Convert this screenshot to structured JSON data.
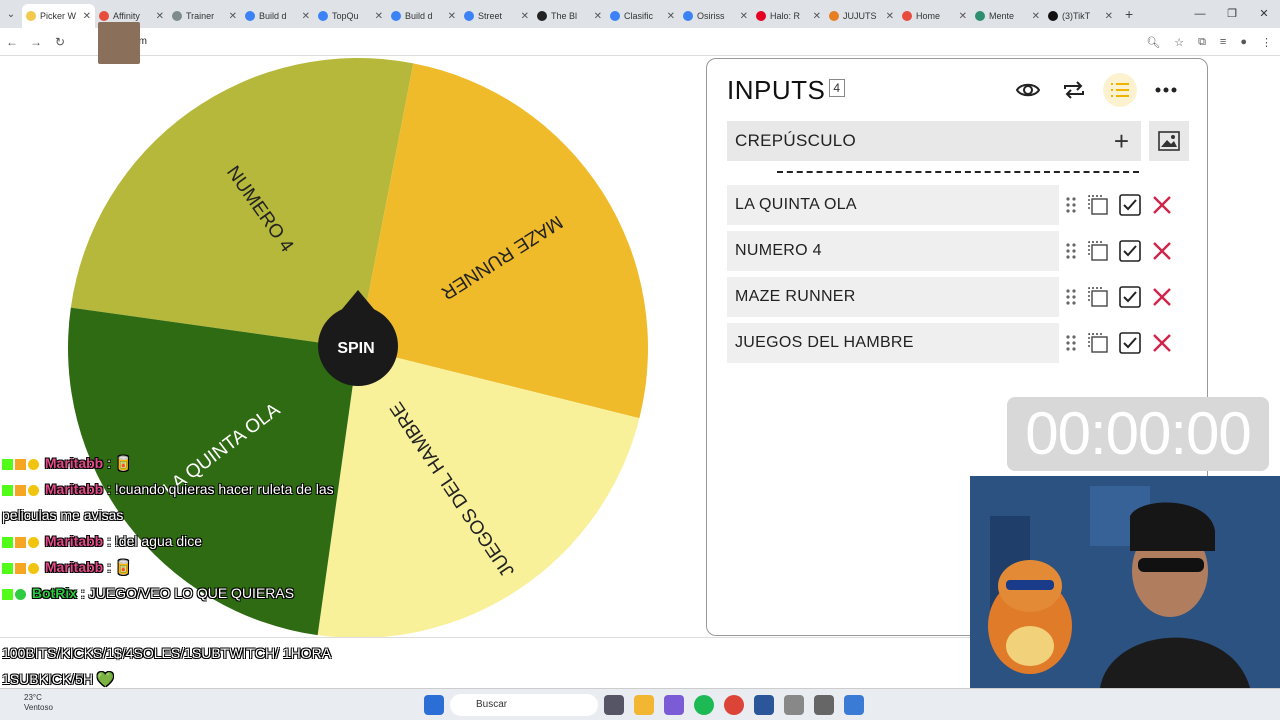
{
  "browser": {
    "tabs": [
      {
        "title": "Picker W",
        "color": "#f2c94c",
        "active": true
      },
      {
        "title": "Affinity",
        "color": "#e74c3c"
      },
      {
        "title": "Trainer",
        "color": "#7f8c8d"
      },
      {
        "title": "Build d",
        "color": "#3b82f6"
      },
      {
        "title": "TopQu",
        "color": "#3b82f6"
      },
      {
        "title": "Build d",
        "color": "#3b82f6"
      },
      {
        "title": "Street",
        "color": "#3b82f6"
      },
      {
        "title": "The Bl",
        "color": "#222222"
      },
      {
        "title": "Clasific",
        "color": "#3b82f6"
      },
      {
        "title": "Osiriss",
        "color": "#3b82f6"
      },
      {
        "title": "Halo: R",
        "color": "#e60023"
      },
      {
        "title": "JUJUTS",
        "color": "#e67e22"
      },
      {
        "title": "Home",
        "color": "#e74c3c"
      },
      {
        "title": "Mente",
        "color": "#2d8f6f"
      },
      {
        "title": "(3)TikT",
        "color": "#111111"
      }
    ],
    "new_tab": "+",
    "url": "eel.com"
  },
  "wheel": {
    "spin_label": "SPIN",
    "segments": [
      {
        "label": "NUMERO 4",
        "color": "#b5b83a"
      },
      {
        "label": "MAZE RUNNER",
        "color": "#efbb2a"
      },
      {
        "label": "JUEGOS DEL HAMBRE",
        "color": "#f8f19a"
      },
      {
        "label": "LA QUINTA OLA",
        "color": "#2f6b12"
      }
    ]
  },
  "panel": {
    "title": "INPUTS",
    "count": "4",
    "input_value": "CREPÚSCULO",
    "entries": [
      {
        "label": "LA QUINTA OLA"
      },
      {
        "label": "NUMERO 4"
      },
      {
        "label": "MAZE RUNNER"
      },
      {
        "label": "JUEGOS DEL HAMBRE"
      }
    ]
  },
  "timer": "00:00:00",
  "chat": [
    {
      "user": "Maritabb",
      "text": " : 🥫"
    },
    {
      "user": "Maritabb",
      "text": " : !cuando quieras hacer ruleta de las peliculas me avisas"
    },
    {
      "user": "Maritabb",
      "text": " : !del agua dice"
    },
    {
      "user": "Maritabb",
      "text": " : 🥫"
    },
    {
      "user": "BotRix",
      "text": " : JUEGO/VEO LO QUE QUIERAS",
      "bot": true
    }
  ],
  "ticker": "100BITS/KICKS/1$/4SOLES/1SUBTWITCH/ 1HORA 1SUBKICK/5H 💚",
  "taskbar": {
    "temp": "23°C",
    "weather": "Ventoso",
    "search": "Buscar"
  }
}
